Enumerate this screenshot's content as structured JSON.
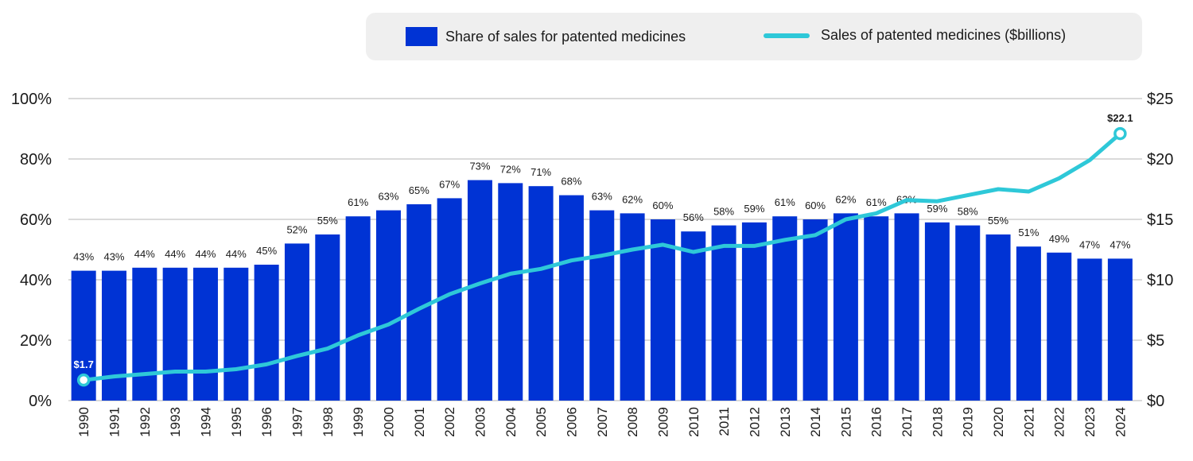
{
  "chart_data": {
    "type": "bar",
    "categories": [
      "1990",
      "1991",
      "1992",
      "1993",
      "1994",
      "1995",
      "1996",
      "1997",
      "1998",
      "1999",
      "2000",
      "2001",
      "2002",
      "2003",
      "2004",
      "2005",
      "2006",
      "2007",
      "2008",
      "2009",
      "2010",
      "2011",
      "2012",
      "2013",
      "2014",
      "2015",
      "2016",
      "2017",
      "2018",
      "2019",
      "2020",
      "2021",
      "2022",
      "2023",
      "2024"
    ],
    "series": [
      {
        "name": "Share of sales for patented medicines",
        "type": "bar",
        "axis": "left",
        "color": "#0033d4",
        "values": [
          43,
          43,
          44,
          44,
          44,
          44,
          45,
          52,
          55,
          61,
          63,
          65,
          67,
          73,
          72,
          71,
          68,
          63,
          62,
          60,
          56,
          58,
          59,
          61,
          60,
          62,
          61,
          62,
          59,
          58,
          55,
          51,
          49,
          47,
          47
        ],
        "value_labels": [
          "43%",
          "43%",
          "44%",
          "44%",
          "44%",
          "44%",
          "45%",
          "52%",
          "55%",
          "61%",
          "63%",
          "65%",
          "67%",
          "73%",
          "72%",
          "71%",
          "68%",
          "63%",
          "62%",
          "60%",
          "56%",
          "58%",
          "59%",
          "61%",
          "60%",
          "62%",
          "61%",
          "62%",
          "59%",
          "58%",
          "55%",
          "51%",
          "49%",
          "47%",
          "47%"
        ]
      },
      {
        "name": "Sales of patented medicines ($billions)",
        "type": "line",
        "axis": "right",
        "color": "#2ec8d8",
        "values": [
          1.7,
          2.0,
          2.2,
          2.4,
          2.4,
          2.6,
          3.0,
          3.7,
          4.3,
          5.4,
          6.3,
          7.6,
          8.8,
          9.7,
          10.5,
          10.9,
          11.6,
          12.0,
          12.5,
          12.9,
          12.3,
          12.8,
          12.8,
          13.3,
          13.7,
          15.0,
          15.5,
          16.6,
          16.5,
          17.0,
          17.5,
          17.3,
          18.4,
          19.9,
          22.1
        ],
        "point_labels": [
          {
            "index": 0,
            "label": "$1.7"
          },
          {
            "index": 34,
            "label": "$22.1"
          }
        ]
      }
    ],
    "y_left": {
      "min": 0,
      "max": 100,
      "ticks": [
        0,
        20,
        40,
        60,
        80,
        100
      ],
      "tick_labels": [
        "0%",
        "20%",
        "40%",
        "60%",
        "80%",
        "100%"
      ]
    },
    "y_right": {
      "min": 0,
      "max": 25,
      "ticks": [
        0,
        5,
        10,
        15,
        20,
        25
      ],
      "tick_labels": [
        "$0",
        "$5",
        "$10",
        "$15",
        "$20",
        "$25"
      ]
    },
    "grid": true,
    "legend_position": "top",
    "title": "",
    "xlabel": "",
    "ylabel": ""
  },
  "legend": {
    "bar_label": "Share of sales for patented medicines",
    "line_label": "Sales of patented medicines ($billions)"
  }
}
